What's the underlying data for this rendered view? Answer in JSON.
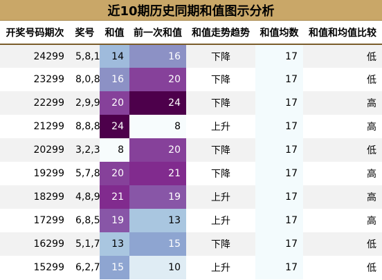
{
  "title": "近10期历史同期和值图示分析",
  "headers": [
    "开奖号码期次",
    "奖号",
    "和值",
    "前一次和值",
    "和值走势趋势",
    "和值均数",
    "和值和均值比较"
  ],
  "rows": [
    {
      "period": "24299",
      "nums": "5,8,1",
      "sum": "14",
      "prev": "16",
      "trend": "下降",
      "avg": "17",
      "cmp": "低"
    },
    {
      "period": "23299",
      "nums": "8,0,8",
      "sum": "16",
      "prev": "20",
      "trend": "下降",
      "avg": "17",
      "cmp": "低"
    },
    {
      "period": "22299",
      "nums": "2,9,9",
      "sum": "20",
      "prev": "24",
      "trend": "下降",
      "avg": "17",
      "cmp": "高"
    },
    {
      "period": "21299",
      "nums": "8,8,8",
      "sum": "24",
      "prev": "8",
      "trend": "上升",
      "avg": "17",
      "cmp": "高"
    },
    {
      "period": "20299",
      "nums": "3,2,3",
      "sum": "8",
      "prev": "20",
      "trend": "下降",
      "avg": "17",
      "cmp": "低"
    },
    {
      "period": "19299",
      "nums": "5,7,8",
      "sum": "20",
      "prev": "21",
      "trend": "下降",
      "avg": "17",
      "cmp": "高"
    },
    {
      "period": "18299",
      "nums": "4,8,9",
      "sum": "21",
      "prev": "19",
      "trend": "上升",
      "avg": "17",
      "cmp": "高"
    },
    {
      "period": "17299",
      "nums": "6,8,5",
      "sum": "19",
      "prev": "13",
      "trend": "上升",
      "avg": "17",
      "cmp": "高"
    },
    {
      "period": "16299",
      "nums": "5,1,7",
      "sum": "13",
      "prev": "15",
      "trend": "下降",
      "avg": "17",
      "cmp": "低"
    },
    {
      "period": "15299",
      "nums": "6,2,7",
      "sum": "15",
      "prev": "10",
      "trend": "上升",
      "avg": "17",
      "cmp": "低"
    }
  ],
  "heat_colors": {
    "8": "#f7fcfd",
    "10": "#dfecf4",
    "13": "#a9c6e0",
    "14": "#9fbbdc",
    "15": "#8ea5d1",
    "16": "#8c91c5",
    "19": "#8856a7",
    "20": "#86419a",
    "21": "#812b8e",
    "24": "#4d004b"
  },
  "heat_text_light": "#ffffff",
  "heat_text_dark": "#000000"
}
